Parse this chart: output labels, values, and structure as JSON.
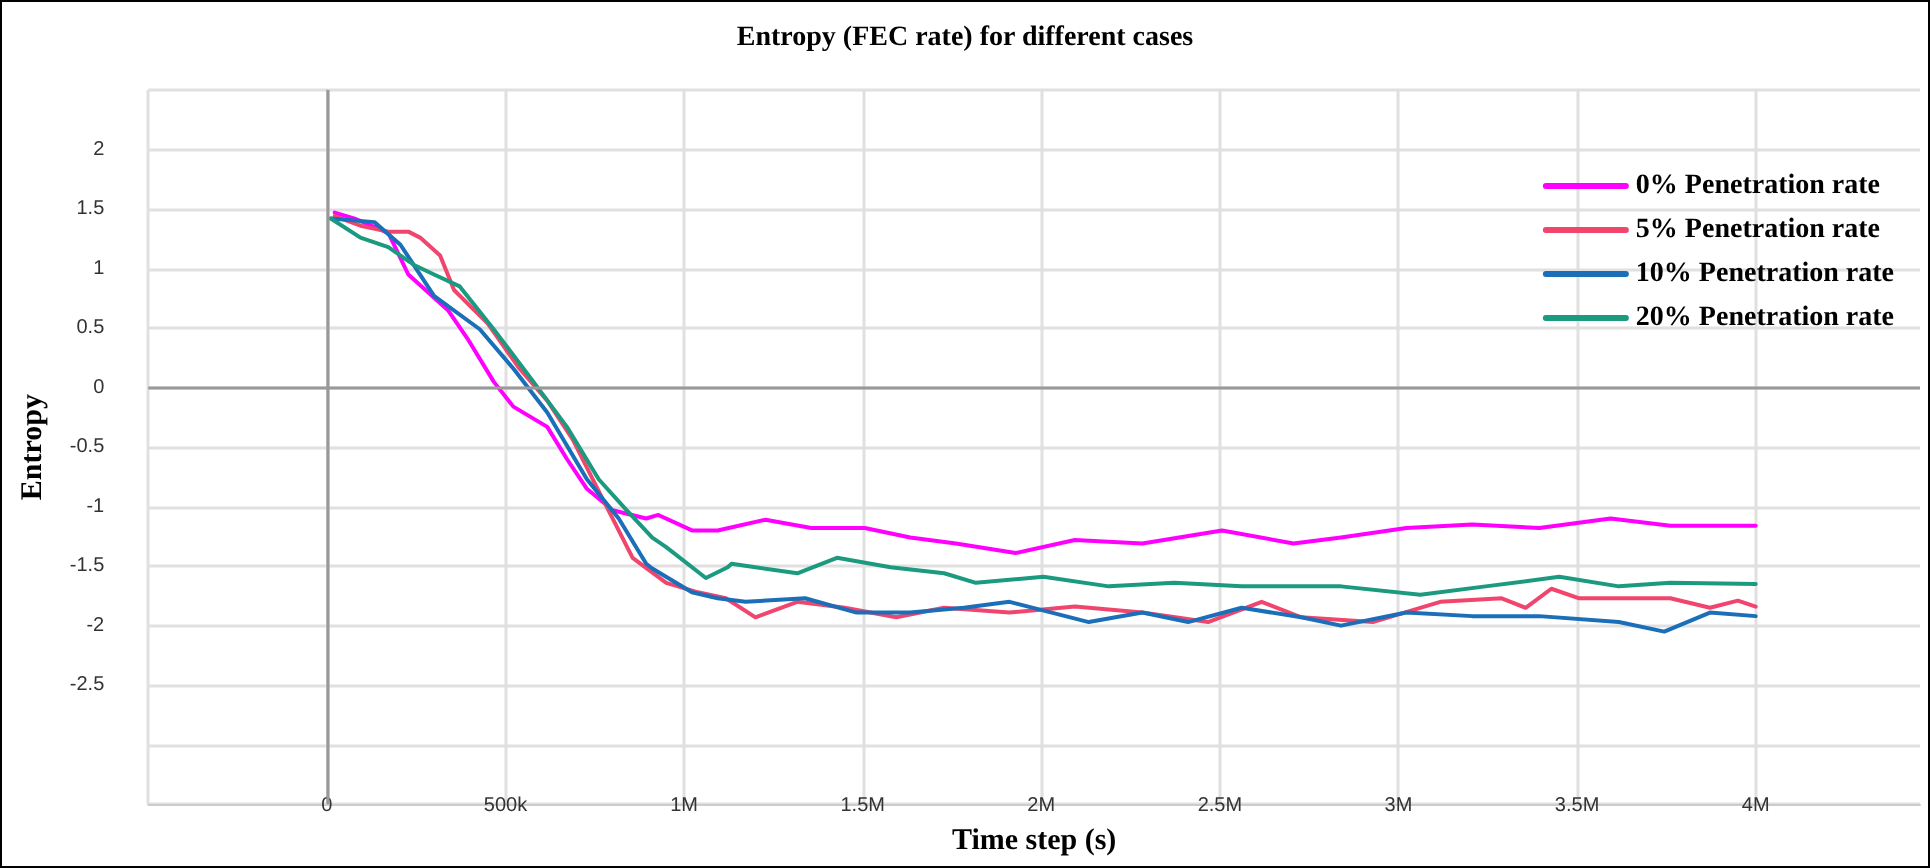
{
  "chart_data": {
    "type": "line",
    "title": "Entropy (FEC rate) for different cases",
    "xlabel": "Time step (s)",
    "ylabel": "Entropy",
    "xlim": [
      -500000,
      4460000
    ],
    "ylim": [
      -3.5,
      2.5
    ],
    "xticks": [
      {
        "value": -500000,
        "label": null
      },
      0,
      {
        "value": 500000,
        "label": "500k"
      },
      {
        "value": 1000000,
        "label": "1M"
      },
      {
        "value": 1500000,
        "label": "1.5M"
      },
      {
        "value": 2000000,
        "label": "2M"
      },
      {
        "value": 2500000,
        "label": "2.5M"
      },
      {
        "value": 3000000,
        "label": "3M"
      },
      {
        "value": 3500000,
        "label": "3.5M"
      },
      {
        "value": 4000000,
        "label": "4M"
      }
    ],
    "yticks": [
      {
        "value": -3.5,
        "label": null
      },
      {
        "value": -3,
        "label": null
      },
      -2.5,
      -2,
      -1.5,
      -1,
      -0.5,
      0,
      0.5,
      1,
      1.5,
      2,
      {
        "value": 2.5,
        "label": null
      }
    ],
    "grid": true,
    "legend": "top right",
    "marker": "none",
    "line_style": "solid",
    "series": [
      {
        "name": "0% Penetration rate",
        "color": "#ff00ff",
        "x": [
          22000,
          78000,
          172000,
          228000,
          339000,
          394000,
          467000,
          522000,
          617000,
          672000,
          728000,
          800000,
          894000,
          928000,
          1022000,
          1094000,
          1228000,
          1356000,
          1506000,
          1633000,
          1761000,
          1928000,
          2094000,
          2283000,
          2506000,
          2706000,
          2839000,
          3022000,
          3206000,
          3394000,
          3594000,
          3761000,
          4000000
        ],
        "values": [
          1.47,
          1.42,
          1.3,
          0.95,
          0.65,
          0.41,
          0.05,
          -0.16,
          -0.33,
          -0.6,
          -0.85,
          -1.03,
          -1.1,
          -1.07,
          -1.2,
          -1.2,
          -1.11,
          -1.18,
          -1.18,
          -1.26,
          -1.31,
          -1.39,
          -1.28,
          -1.31,
          -1.2,
          -1.31,
          -1.26,
          -1.18,
          -1.15,
          -1.18,
          -1.1,
          -1.16,
          -1.16
        ]
      },
      {
        "name": "5% Penetration rate",
        "color": "#f0466e",
        "x": [
          22000,
          94000,
          172000,
          228000,
          261000,
          317000,
          356000,
          450000,
          539000,
          617000,
          689000,
          761000,
          856000,
          950000,
          1039000,
          1117000,
          1200000,
          1317000,
          1450000,
          1594000,
          1728000,
          1911000,
          2094000,
          2283000,
          2467000,
          2617000,
          2728000,
          2928000,
          3117000,
          3289000,
          3356000,
          3428000,
          3506000,
          3761000,
          3872000,
          3950000,
          4000000
        ],
        "values": [
          1.44,
          1.36,
          1.31,
          1.31,
          1.26,
          1.11,
          0.82,
          0.54,
          0.16,
          -0.11,
          -0.44,
          -0.87,
          -1.43,
          -1.64,
          -1.72,
          -1.77,
          -1.93,
          -1.8,
          -1.85,
          -1.93,
          -1.85,
          -1.89,
          -1.84,
          -1.89,
          -1.97,
          -1.8,
          -1.93,
          -1.97,
          -1.8,
          -1.77,
          -1.85,
          -1.69,
          -1.77,
          -1.77,
          -1.85,
          -1.79,
          -1.84
        ]
      },
      {
        "name": "10% Penetration rate",
        "color": "#1a6fb8",
        "x": [
          11000,
          133000,
          206000,
          300000,
          428000,
          522000,
          617000,
          728000,
          817000,
          894000,
          911000,
          1022000,
          1094000,
          1172000,
          1339000,
          1483000,
          1633000,
          1783000,
          1911000,
          2133000,
          2283000,
          2411000,
          2561000,
          2728000,
          2839000,
          3022000,
          3206000,
          3394000,
          3617000,
          3744000,
          3872000,
          4000000
        ],
        "values": [
          1.42,
          1.39,
          1.2,
          0.77,
          0.49,
          0.16,
          -0.21,
          -0.77,
          -1.1,
          -1.48,
          -1.52,
          -1.72,
          -1.77,
          -1.8,
          -1.77,
          -1.89,
          -1.89,
          -1.85,
          -1.8,
          -1.97,
          -1.89,
          -1.97,
          -1.85,
          -1.93,
          -2.0,
          -1.89,
          -1.92,
          -1.92,
          -1.97,
          -2.05,
          -1.89,
          -1.92
        ]
      },
      {
        "name": "20% Penetration rate",
        "color": "#1c9a80",
        "x": [
          11000,
          94000,
          172000,
          244000,
          300000,
          372000,
          467000,
          578000,
          672000,
          761000,
          839000,
          911000,
          950000,
          1061000,
          1122000,
          1133000,
          1317000,
          1428000,
          1578000,
          1728000,
          1817000,
          2006000,
          2189000,
          2372000,
          2561000,
          2728000,
          2839000,
          3061000,
          3244000,
          3450000,
          3617000,
          3761000,
          4000000
        ],
        "values": [
          1.42,
          1.26,
          1.18,
          1.03,
          0.95,
          0.85,
          0.49,
          0.05,
          -0.33,
          -0.77,
          -1.03,
          -1.26,
          -1.34,
          -1.6,
          -1.51,
          -1.48,
          -1.56,
          -1.43,
          -1.51,
          -1.56,
          -1.64,
          -1.59,
          -1.67,
          -1.64,
          -1.67,
          -1.67,
          -1.67,
          -1.74,
          -1.67,
          -1.59,
          -1.67,
          -1.64,
          -1.65
        ]
      }
    ]
  }
}
